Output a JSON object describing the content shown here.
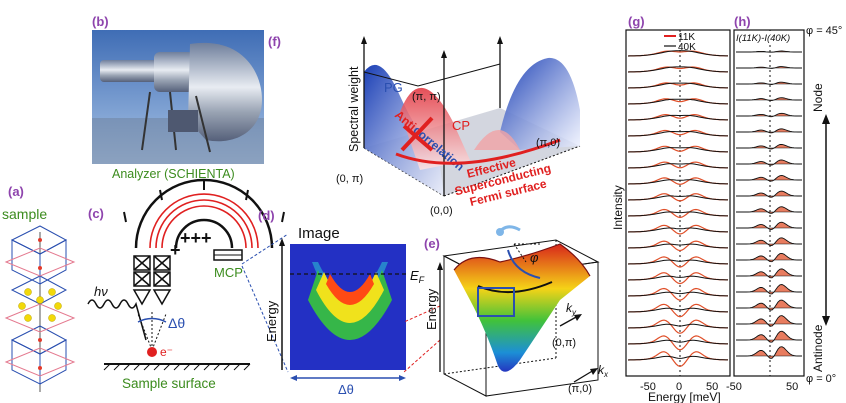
{
  "colors": {
    "panel_label": "#8e44ad",
    "green_caption": "#3c8c1e",
    "red": "#e02020",
    "blue": "#2a4fb0",
    "black": "#111111"
  },
  "panel_a": {
    "label": "(a)",
    "caption": "sample"
  },
  "panel_b": {
    "label": "(b)",
    "caption": "Analyzer (SCHIENTA)"
  },
  "panel_c": {
    "label": "(c)",
    "hv": "hν",
    "delta_theta": "Δθ",
    "electron": "e⁻",
    "mcp": "MCP",
    "surface": "Sample surface"
  },
  "panel_d": {
    "label": "(d)",
    "title": "Image",
    "ylabel": "Energy",
    "ef": "E",
    "ef_sub": "F",
    "xlabel": "Δθ"
  },
  "panel_e": {
    "label": "(e)",
    "ylabel": "Energy",
    "phi": "φ",
    "ky": "k",
    "ky_sub": "y",
    "kx": "k",
    "kx_sub": "x",
    "pt1": "(0,π)",
    "pt2": "(π,0)"
  },
  "panel_f": {
    "label": "(f)",
    "ylabel": "Spectral weight",
    "pg": "PG",
    "cp": "CP",
    "anti1": "Anti",
    "anti2": "correlation",
    "pipi": "(π, π)",
    "pi0": "(π,0)",
    "zeropi": "(0, π)",
    "zero": "(0,0)",
    "fermi1": "Effective",
    "fermi2": "Superconducting",
    "fermi3": "Fermi surface"
  },
  "panel_g": {
    "label": "(g)",
    "legend": [
      "11K",
      "40K"
    ],
    "ylabel": "Intensity",
    "ticks": [
      "-50",
      "0",
      "50"
    ]
  },
  "panel_h": {
    "label": "(h)",
    "legend": "I(11K)-I(40K)",
    "ticks": [
      "-50",
      "50"
    ],
    "top": "φ = 45°",
    "bottom": "φ = 0°",
    "node": "Node",
    "antinode": "Antinode"
  },
  "xlabel": "Energy [meV]"
}
